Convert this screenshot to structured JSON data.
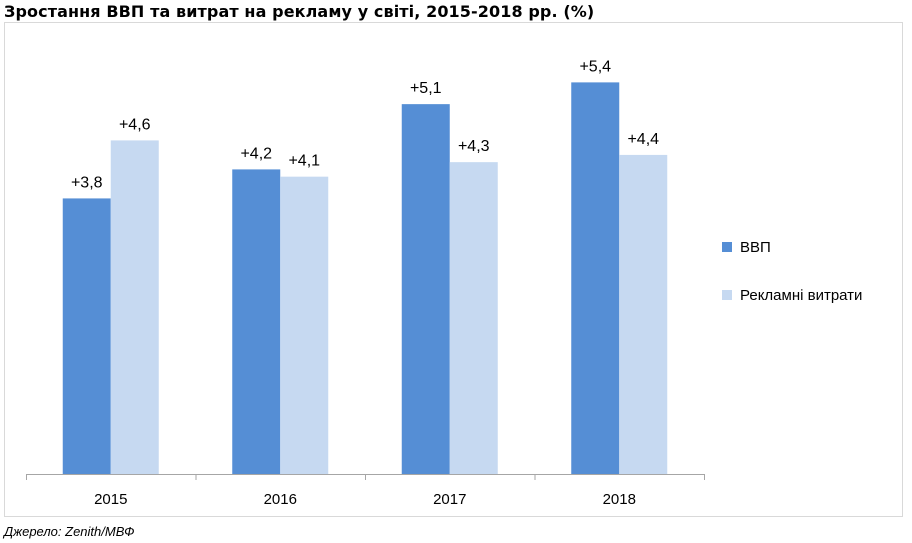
{
  "title": "Зростання ВВП та витрат на рекламу у світі, 2015-2018  рр. (%)",
  "source": "Джерело: Zenith/МВФ",
  "colors": {
    "gdp": "#558ed5",
    "ads": "#c6d9f1",
    "axis": "#a6a6a6"
  },
  "chart_data": {
    "type": "bar",
    "title": "Зростання ВВП та витрат на рекламу у світі, 2015-2018  рр. (%)",
    "categories": [
      "2015",
      "2016",
      "2017",
      "2018"
    ],
    "series": [
      {
        "name": "ВВП",
        "values": [
          3.8,
          4.2,
          5.1,
          5.4
        ],
        "labels": [
          "+3,8",
          "+4,2",
          "+5,1",
          "+5,4"
        ]
      },
      {
        "name": "Рекламні витрати",
        "values": [
          4.6,
          4.1,
          4.3,
          4.4
        ],
        "labels": [
          "+4,6",
          "+4,1",
          "+4,3",
          "+4,4"
        ]
      }
    ],
    "ylim": [
      0,
      6
    ],
    "xlabel": "",
    "ylabel": "",
    "legend": "right"
  }
}
